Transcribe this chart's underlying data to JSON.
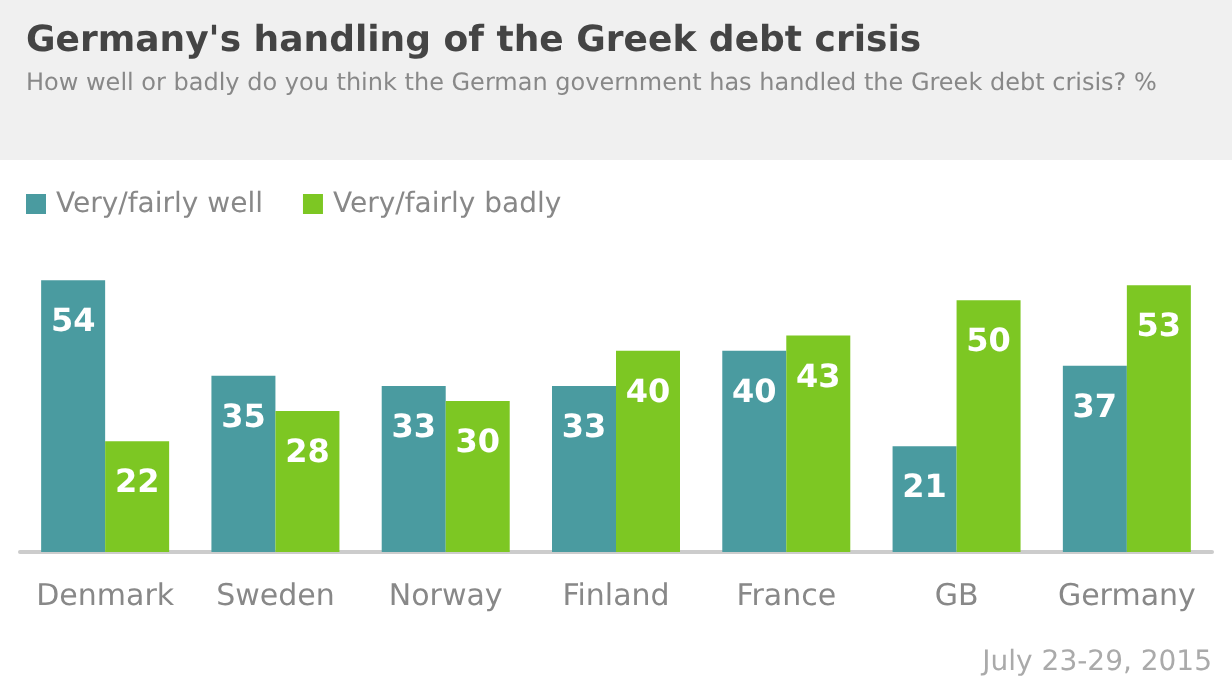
{
  "chart_data": {
    "type": "bar",
    "title": "Germany's handling of the Greek debt crisis",
    "subtitle": "How well or badly do you think the German government has handled the Greek debt crisis? %",
    "categories": [
      "Denmark",
      "Sweden",
      "Norway",
      "Finland",
      "France",
      "GB",
      "Germany"
    ],
    "series": [
      {
        "name": "Very/fairly well",
        "color": "#4a9ba0",
        "values": [
          54,
          35,
          33,
          33,
          40,
          21,
          37
        ]
      },
      {
        "name": "Very/fairly badly",
        "color": "#7dc723",
        "values": [
          22,
          28,
          30,
          40,
          43,
          50,
          53
        ]
      }
    ],
    "data_labels": true,
    "legend": "top left",
    "annotations": [
      "July 23-29, 2015"
    ]
  }
}
